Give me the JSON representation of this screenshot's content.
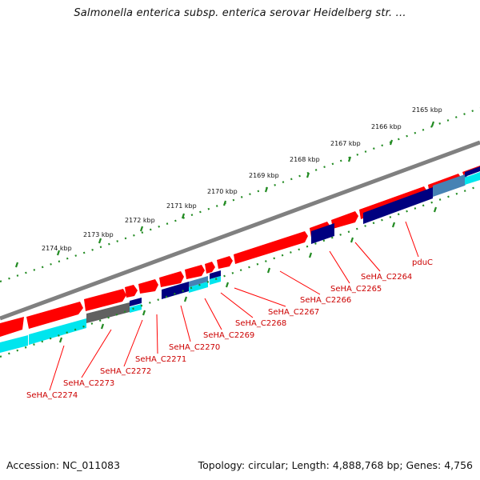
{
  "title": "Salmonella enterica subsp. enterica serovar Heidelberg str. ...",
  "footer": {
    "accession": "Accession: NC_011083",
    "summary": "Topology: circular; Length: 4,888,768 bp; Genes: 4,756"
  },
  "colors": {
    "backbone": "#808080",
    "ruler": "#228B22",
    "forward_gene": "#ff0000",
    "gene_label": "#cc0000",
    "dark_blue": "#000080",
    "cyan": "#00e5ee",
    "steel_blue": "#4682b4",
    "gray_gene": "#606060"
  },
  "kbp_labels": [
    "2165 kbp",
    "2166 kbp",
    "2167 kbp",
    "2168 kbp",
    "2169 kbp",
    "2170 kbp",
    "2171 kbp",
    "2172 kbp",
    "2173 kbp",
    "2174 kbp"
  ],
  "gene_labels": [
    "pduC",
    "SeHA_C2264",
    "SeHA_C2265",
    "SeHA_C2266",
    "SeHA_C2267",
    "SeHA_C2268",
    "SeHA_C2269",
    "SeHA_C2270",
    "SeHA_C2271",
    "SeHA_C2272",
    "SeHA_C2273",
    "SeHA_C2274"
  ]
}
